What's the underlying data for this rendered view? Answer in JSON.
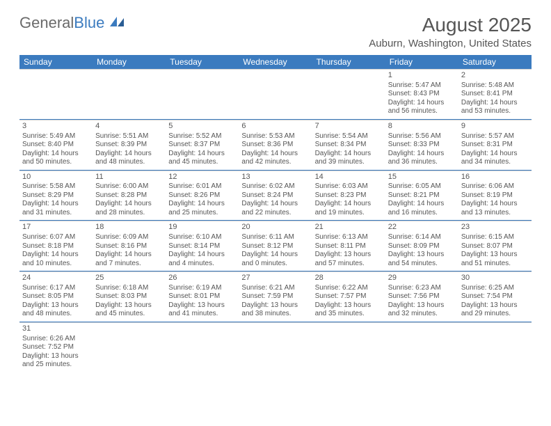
{
  "logo": {
    "text1": "General",
    "text2": "Blue"
  },
  "header": {
    "title": "August 2025",
    "location": "Auburn, Washington, United States"
  },
  "colors": {
    "header_bg": "#3b7bbf",
    "header_text": "#ffffff",
    "text": "#555555",
    "row_divider": "#3b7bbf",
    "cell_top": "#d0d0d0"
  },
  "weekdays": [
    "Sunday",
    "Monday",
    "Tuesday",
    "Wednesday",
    "Thursday",
    "Friday",
    "Saturday"
  ],
  "weeks": [
    [
      null,
      null,
      null,
      null,
      null,
      {
        "n": "1",
        "sr": "Sunrise: 5:47 AM",
        "ss": "Sunset: 8:43 PM",
        "dl": "Daylight: 14 hours and 56 minutes."
      },
      {
        "n": "2",
        "sr": "Sunrise: 5:48 AM",
        "ss": "Sunset: 8:41 PM",
        "dl": "Daylight: 14 hours and 53 minutes."
      }
    ],
    [
      {
        "n": "3",
        "sr": "Sunrise: 5:49 AM",
        "ss": "Sunset: 8:40 PM",
        "dl": "Daylight: 14 hours and 50 minutes."
      },
      {
        "n": "4",
        "sr": "Sunrise: 5:51 AM",
        "ss": "Sunset: 8:39 PM",
        "dl": "Daylight: 14 hours and 48 minutes."
      },
      {
        "n": "5",
        "sr": "Sunrise: 5:52 AM",
        "ss": "Sunset: 8:37 PM",
        "dl": "Daylight: 14 hours and 45 minutes."
      },
      {
        "n": "6",
        "sr": "Sunrise: 5:53 AM",
        "ss": "Sunset: 8:36 PM",
        "dl": "Daylight: 14 hours and 42 minutes."
      },
      {
        "n": "7",
        "sr": "Sunrise: 5:54 AM",
        "ss": "Sunset: 8:34 PM",
        "dl": "Daylight: 14 hours and 39 minutes."
      },
      {
        "n": "8",
        "sr": "Sunrise: 5:56 AM",
        "ss": "Sunset: 8:33 PM",
        "dl": "Daylight: 14 hours and 36 minutes."
      },
      {
        "n": "9",
        "sr": "Sunrise: 5:57 AM",
        "ss": "Sunset: 8:31 PM",
        "dl": "Daylight: 14 hours and 34 minutes."
      }
    ],
    [
      {
        "n": "10",
        "sr": "Sunrise: 5:58 AM",
        "ss": "Sunset: 8:29 PM",
        "dl": "Daylight: 14 hours and 31 minutes."
      },
      {
        "n": "11",
        "sr": "Sunrise: 6:00 AM",
        "ss": "Sunset: 8:28 PM",
        "dl": "Daylight: 14 hours and 28 minutes."
      },
      {
        "n": "12",
        "sr": "Sunrise: 6:01 AM",
        "ss": "Sunset: 8:26 PM",
        "dl": "Daylight: 14 hours and 25 minutes."
      },
      {
        "n": "13",
        "sr": "Sunrise: 6:02 AM",
        "ss": "Sunset: 8:24 PM",
        "dl": "Daylight: 14 hours and 22 minutes."
      },
      {
        "n": "14",
        "sr": "Sunrise: 6:03 AM",
        "ss": "Sunset: 8:23 PM",
        "dl": "Daylight: 14 hours and 19 minutes."
      },
      {
        "n": "15",
        "sr": "Sunrise: 6:05 AM",
        "ss": "Sunset: 8:21 PM",
        "dl": "Daylight: 14 hours and 16 minutes."
      },
      {
        "n": "16",
        "sr": "Sunrise: 6:06 AM",
        "ss": "Sunset: 8:19 PM",
        "dl": "Daylight: 14 hours and 13 minutes."
      }
    ],
    [
      {
        "n": "17",
        "sr": "Sunrise: 6:07 AM",
        "ss": "Sunset: 8:18 PM",
        "dl": "Daylight: 14 hours and 10 minutes."
      },
      {
        "n": "18",
        "sr": "Sunrise: 6:09 AM",
        "ss": "Sunset: 8:16 PM",
        "dl": "Daylight: 14 hours and 7 minutes."
      },
      {
        "n": "19",
        "sr": "Sunrise: 6:10 AM",
        "ss": "Sunset: 8:14 PM",
        "dl": "Daylight: 14 hours and 4 minutes."
      },
      {
        "n": "20",
        "sr": "Sunrise: 6:11 AM",
        "ss": "Sunset: 8:12 PM",
        "dl": "Daylight: 14 hours and 0 minutes."
      },
      {
        "n": "21",
        "sr": "Sunrise: 6:13 AM",
        "ss": "Sunset: 8:11 PM",
        "dl": "Daylight: 13 hours and 57 minutes."
      },
      {
        "n": "22",
        "sr": "Sunrise: 6:14 AM",
        "ss": "Sunset: 8:09 PM",
        "dl": "Daylight: 13 hours and 54 minutes."
      },
      {
        "n": "23",
        "sr": "Sunrise: 6:15 AM",
        "ss": "Sunset: 8:07 PM",
        "dl": "Daylight: 13 hours and 51 minutes."
      }
    ],
    [
      {
        "n": "24",
        "sr": "Sunrise: 6:17 AM",
        "ss": "Sunset: 8:05 PM",
        "dl": "Daylight: 13 hours and 48 minutes."
      },
      {
        "n": "25",
        "sr": "Sunrise: 6:18 AM",
        "ss": "Sunset: 8:03 PM",
        "dl": "Daylight: 13 hours and 45 minutes."
      },
      {
        "n": "26",
        "sr": "Sunrise: 6:19 AM",
        "ss": "Sunset: 8:01 PM",
        "dl": "Daylight: 13 hours and 41 minutes."
      },
      {
        "n": "27",
        "sr": "Sunrise: 6:21 AM",
        "ss": "Sunset: 7:59 PM",
        "dl": "Daylight: 13 hours and 38 minutes."
      },
      {
        "n": "28",
        "sr": "Sunrise: 6:22 AM",
        "ss": "Sunset: 7:57 PM",
        "dl": "Daylight: 13 hours and 35 minutes."
      },
      {
        "n": "29",
        "sr": "Sunrise: 6:23 AM",
        "ss": "Sunset: 7:56 PM",
        "dl": "Daylight: 13 hours and 32 minutes."
      },
      {
        "n": "30",
        "sr": "Sunrise: 6:25 AM",
        "ss": "Sunset: 7:54 PM",
        "dl": "Daylight: 13 hours and 29 minutes."
      }
    ],
    [
      {
        "n": "31",
        "sr": "Sunrise: 6:26 AM",
        "ss": "Sunset: 7:52 PM",
        "dl": "Daylight: 13 hours and 25 minutes."
      },
      null,
      null,
      null,
      null,
      null,
      null
    ]
  ]
}
